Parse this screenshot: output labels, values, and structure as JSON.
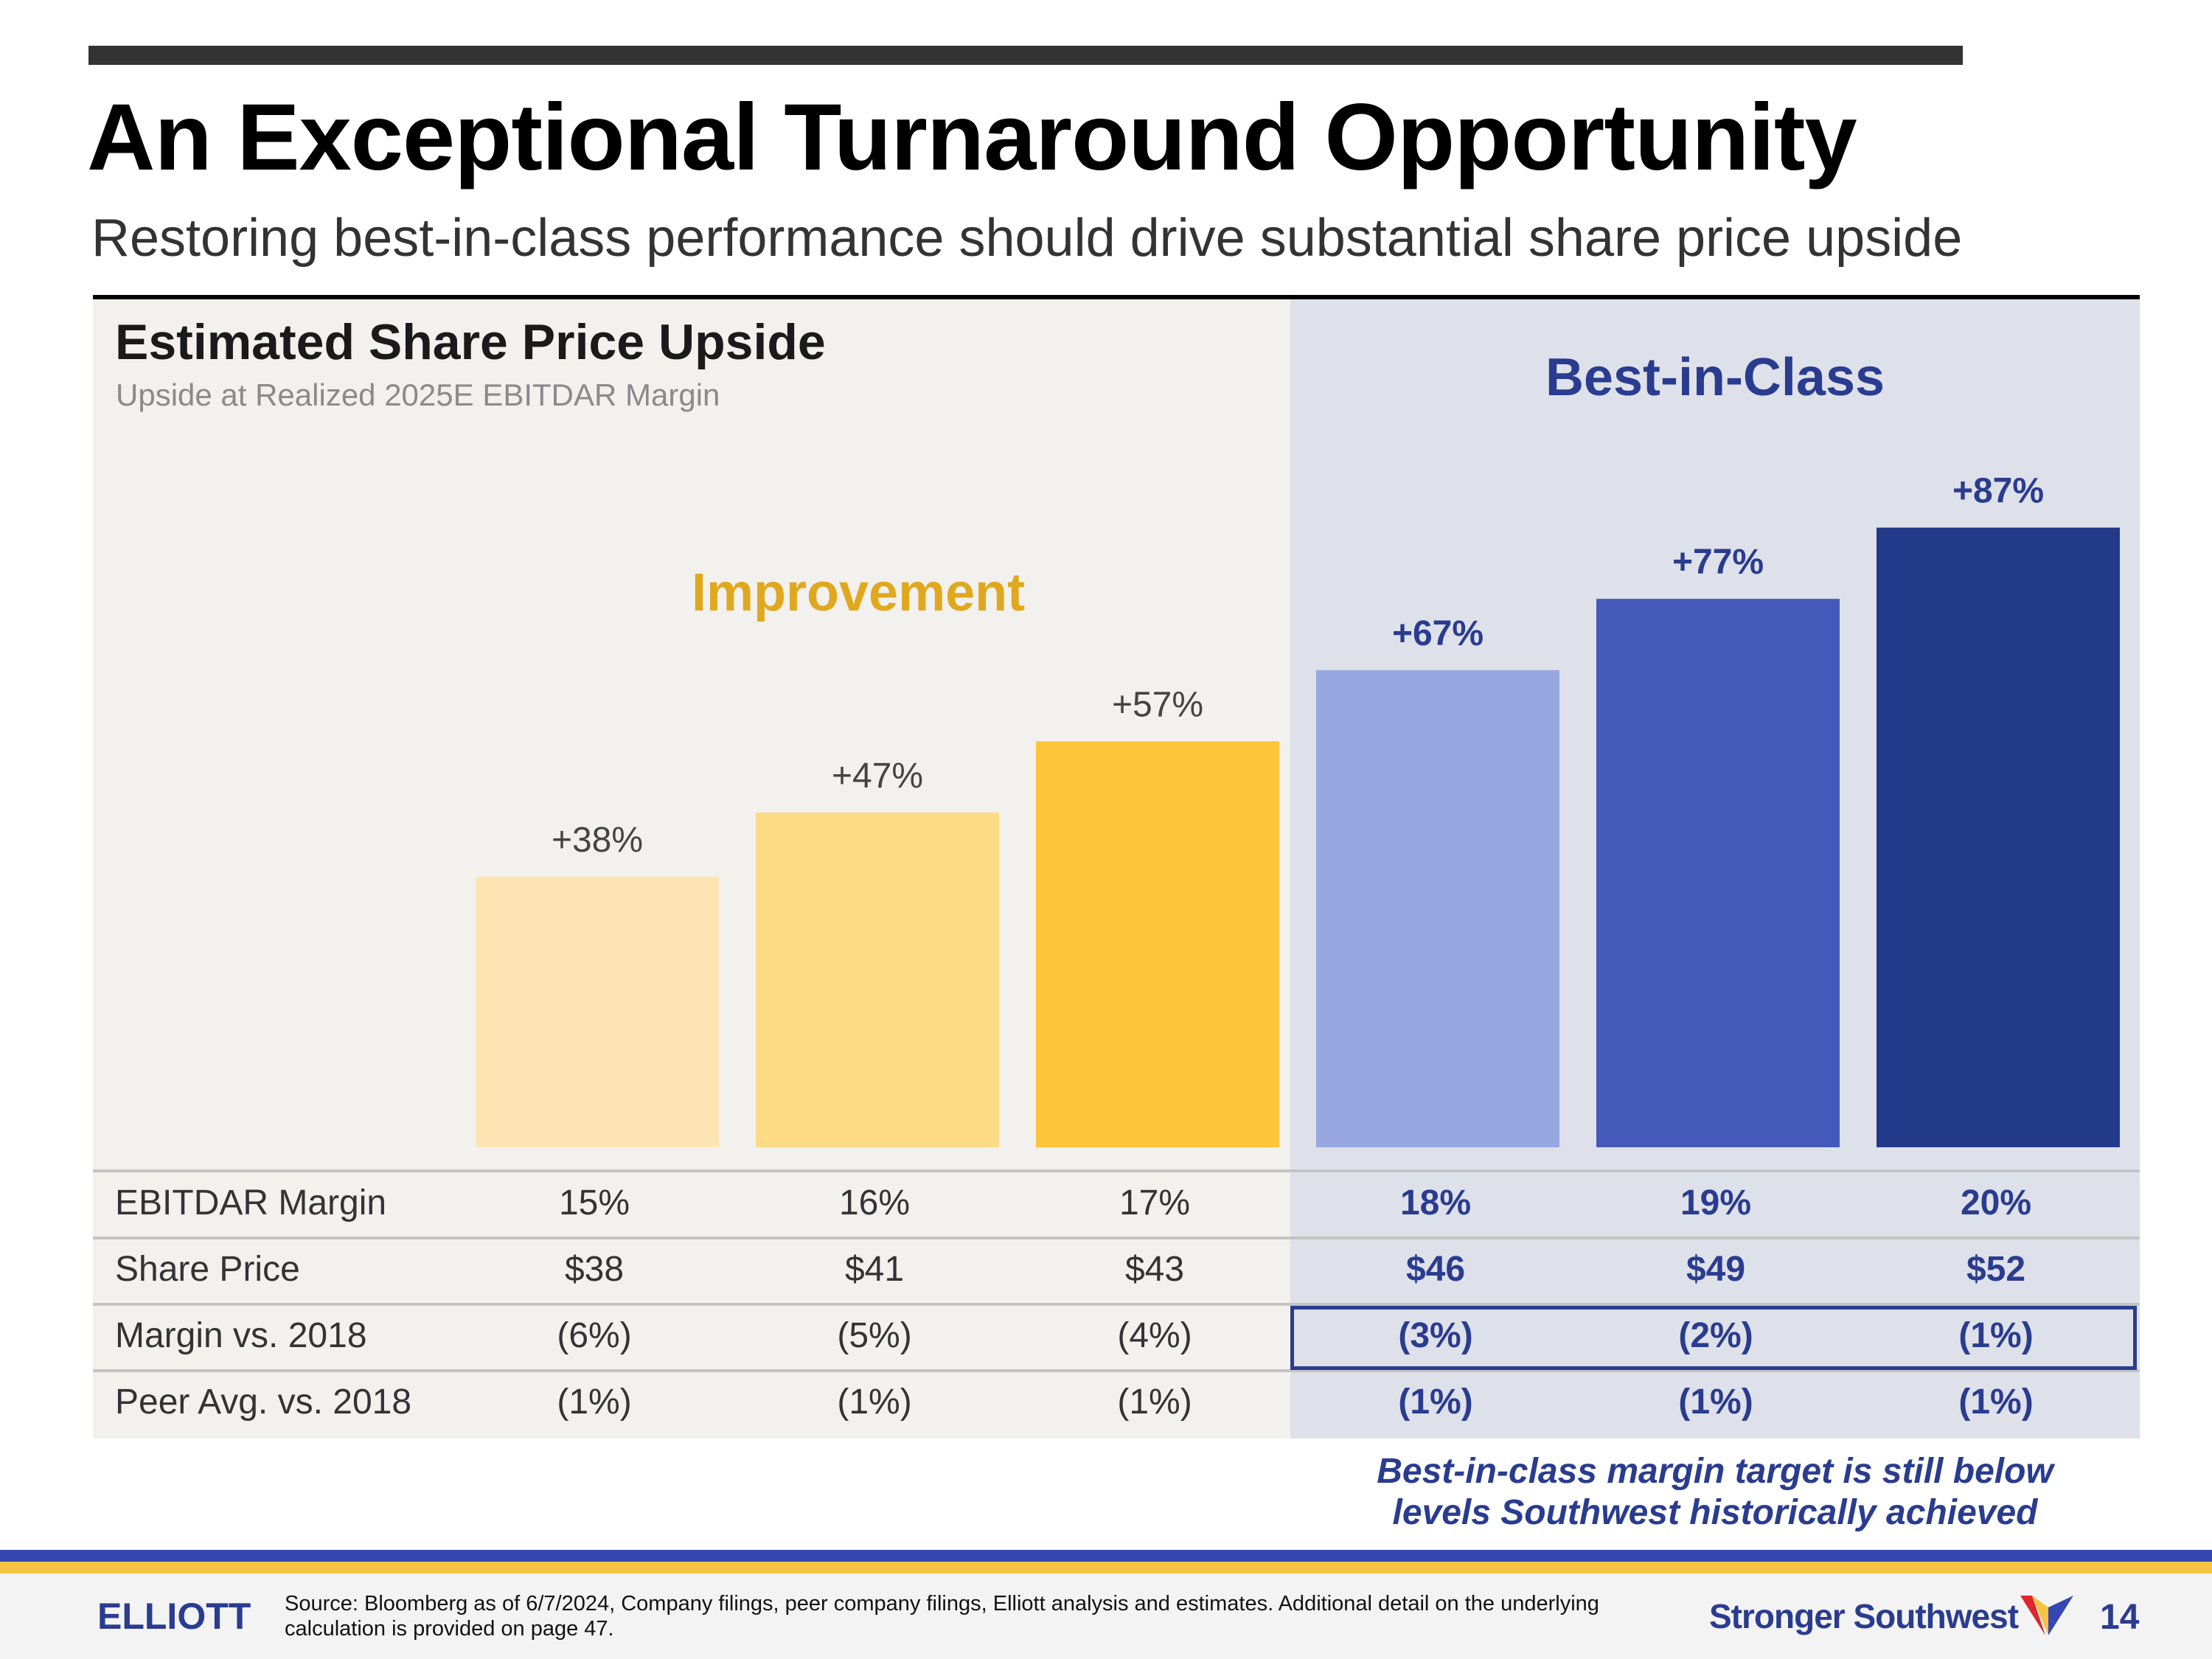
{
  "page": {
    "title": "An Exceptional Turnaround Opportunity",
    "subtitle": "Restoring best-in-class performance should drive substantial share price upside"
  },
  "section_labels": {
    "improvement": "Improvement",
    "best_in_class": "Best-in-Class"
  },
  "chart_data": {
    "type": "bar",
    "title": "Estimated Share Price Upside",
    "subtitle": "Upside at Realized 2025E EBITDAR Margin",
    "categories": [
      "15%",
      "16%",
      "17%",
      "18%",
      "19%",
      "20%"
    ],
    "values": [
      38,
      47,
      57,
      67,
      77,
      87
    ],
    "data_labels": [
      "+38%",
      "+47%",
      "+57%",
      "+67%",
      "+77%",
      "+87%"
    ],
    "bar_colors": [
      "#fde5b3",
      "#fdda86",
      "#fec43a",
      "#97a8e0",
      "#4459b8",
      "#233a8a"
    ],
    "groups": [
      {
        "name": "Improvement",
        "range": [
          0,
          2
        ]
      },
      {
        "name": "Best-in-Class",
        "range": [
          3,
          5
        ]
      }
    ],
    "ylim": [
      0,
      100
    ],
    "grid": false,
    "legend": "none"
  },
  "table": {
    "rows": [
      {
        "label": "EBITDAR Margin",
        "values": [
          "15%",
          "16%",
          "17%",
          "18%",
          "19%",
          "20%"
        ]
      },
      {
        "label": "Share Price",
        "values": [
          "$38",
          "$41",
          "$43",
          "$46",
          "$49",
          "$52"
        ]
      },
      {
        "label": "Margin vs. 2018",
        "values": [
          "(6%)",
          "(5%)",
          "(4%)",
          "(3%)",
          "(2%)",
          "(1%)"
        ]
      },
      {
        "label": "Peer Avg. vs. 2018",
        "values": [
          "(1%)",
          "(1%)",
          "(1%)",
          "(1%)",
          "(1%)",
          "(1%)"
        ]
      }
    ]
  },
  "callout": {
    "line1": "Best-in-class margin target is still below",
    "line2": "levels Southwest historically achieved"
  },
  "footer": {
    "brand": "ELLIOTT",
    "source": "Source: Bloomberg as of 6/7/2024, Company filings, peer company filings, Elliott analysis and estimates. Additional detail on the underlying calculation is provided on page 47.",
    "logo_text": "Stronger Southwest",
    "page_number": "14"
  },
  "colors": {
    "accent_blue": "#2a3c8f",
    "accent_gold": "#e0a81f",
    "panel_left_bg": "#f2f1ee",
    "panel_right_bg": "#dfe1ea"
  }
}
